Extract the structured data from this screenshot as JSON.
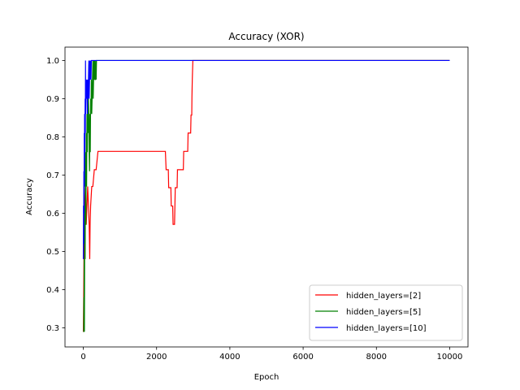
{
  "chart_data": {
    "type": "line",
    "title": "Accuracy (XOR)",
    "xlabel": "Epoch",
    "ylabel": "Accuracy",
    "xlim": [
      -500,
      10500
    ],
    "ylim": [
      0.25,
      1.035
    ],
    "xticks": [
      0,
      2000,
      4000,
      6000,
      8000,
      10000
    ],
    "yticks": [
      0.3,
      0.4,
      0.5,
      0.6,
      0.7,
      0.8,
      0.9,
      1.0
    ],
    "grid": false,
    "legend_position": "bottom-right",
    "series": [
      {
        "name": "hidden_layers=[2]",
        "color": "#ff0000",
        "points": [
          [
            0,
            0.29
          ],
          [
            10,
            0.38
          ],
          [
            20,
            0.52
          ],
          [
            30,
            0.57
          ],
          [
            40,
            0.62
          ],
          [
            55,
            0.67
          ],
          [
            70,
            0.62
          ],
          [
            80,
            0.57
          ],
          [
            100,
            0.62
          ],
          [
            120,
            0.67
          ],
          [
            140,
            0.62
          ],
          [
            160,
            0.57
          ],
          [
            175,
            0.48
          ],
          [
            185,
            0.57
          ],
          [
            200,
            0.62
          ],
          [
            230,
            0.67
          ],
          [
            260,
            0.67
          ],
          [
            300,
            0.714
          ],
          [
            350,
            0.714
          ],
          [
            400,
            0.762
          ],
          [
            1000,
            0.762
          ],
          [
            2240,
            0.762
          ],
          [
            2260,
            0.714
          ],
          [
            2320,
            0.714
          ],
          [
            2330,
            0.667
          ],
          [
            2390,
            0.667
          ],
          [
            2400,
            0.619
          ],
          [
            2440,
            0.619
          ],
          [
            2450,
            0.571
          ],
          [
            2490,
            0.571
          ],
          [
            2500,
            0.619
          ],
          [
            2510,
            0.667
          ],
          [
            2560,
            0.667
          ],
          [
            2570,
            0.714
          ],
          [
            2730,
            0.714
          ],
          [
            2740,
            0.762
          ],
          [
            2850,
            0.762
          ],
          [
            2860,
            0.81
          ],
          [
            2930,
            0.81
          ],
          [
            2940,
            0.857
          ],
          [
            2960,
            0.857
          ],
          [
            2965,
            0.905
          ],
          [
            2975,
            0.952
          ],
          [
            2990,
            1.0
          ],
          [
            10000,
            1.0
          ]
        ]
      },
      {
        "name": "hidden_layers=[5]",
        "color": "#008000",
        "points": [
          [
            0,
            0.29
          ],
          [
            10,
            0.29
          ],
          [
            15,
            0.38
          ],
          [
            20,
            0.29
          ],
          [
            25,
            0.48
          ],
          [
            30,
            0.29
          ],
          [
            40,
            0.62
          ],
          [
            50,
            0.48
          ],
          [
            60,
            0.76
          ],
          [
            70,
            0.57
          ],
          [
            80,
            0.81
          ],
          [
            90,
            0.67
          ],
          [
            100,
            0.86
          ],
          [
            110,
            0.76
          ],
          [
            120,
            0.9
          ],
          [
            130,
            0.81
          ],
          [
            140,
            0.9
          ],
          [
            150,
            0.86
          ],
          [
            160,
            0.76
          ],
          [
            170,
            0.71
          ],
          [
            180,
            0.86
          ],
          [
            190,
            0.76
          ],
          [
            200,
            0.9
          ],
          [
            210,
            0.86
          ],
          [
            220,
            0.95
          ],
          [
            230,
            0.86
          ],
          [
            240,
            0.9
          ],
          [
            250,
            0.95
          ],
          [
            260,
            1.0
          ],
          [
            270,
            0.9
          ],
          [
            280,
            0.95
          ],
          [
            290,
            1.0
          ],
          [
            300,
            0.95
          ],
          [
            310,
            1.0
          ],
          [
            320,
            0.95
          ],
          [
            330,
            0.95
          ],
          [
            340,
            1.0
          ],
          [
            350,
            0.95
          ],
          [
            360,
            1.0
          ],
          [
            370,
            1.0
          ],
          [
            10000,
            1.0
          ]
        ]
      },
      {
        "name": "hidden_layers=[10]",
        "color": "#0000ff",
        "points": [
          [
            0,
            0.48
          ],
          [
            5,
            0.62
          ],
          [
            10,
            0.52
          ],
          [
            15,
            0.71
          ],
          [
            20,
            0.6
          ],
          [
            25,
            0.81
          ],
          [
            30,
            0.67
          ],
          [
            35,
            0.86
          ],
          [
            40,
            0.76
          ],
          [
            50,
            0.9
          ],
          [
            55,
            0.81
          ],
          [
            60,
            1.0
          ],
          [
            65,
            0.86
          ],
          [
            75,
            0.95
          ],
          [
            90,
            0.9
          ],
          [
            100,
            0.95
          ],
          [
            110,
            0.86
          ],
          [
            120,
            0.95
          ],
          [
            130,
            0.9
          ],
          [
            140,
            0.95
          ],
          [
            150,
            1.0
          ],
          [
            160,
            0.9
          ],
          [
            170,
            0.95
          ],
          [
            180,
            1.0
          ],
          [
            190,
            0.95
          ],
          [
            200,
            1.0
          ],
          [
            210,
            0.95
          ],
          [
            220,
            1.0
          ],
          [
            240,
            1.0
          ],
          [
            10000,
            1.0
          ]
        ]
      }
    ]
  }
}
